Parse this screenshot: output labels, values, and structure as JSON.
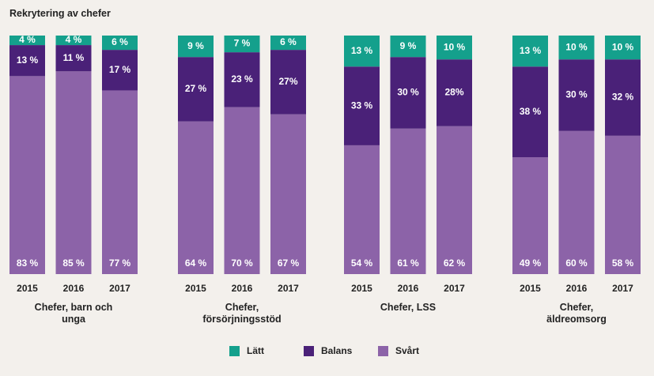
{
  "title": "Rekrytering av chefer",
  "chart_data": [
    {
      "type": "bar",
      "stacked": true,
      "xlabel": "Chefer, barn och unga",
      "categories": [
        "2015",
        "2016",
        "2017"
      ],
      "ylim": [
        0,
        100
      ],
      "series": [
        {
          "name": "Lätt",
          "color": "#14a08c",
          "values": [
            4,
            4,
            6
          ],
          "value_labels": [
            "4 %",
            "4 %",
            "6 %"
          ]
        },
        {
          "name": "Balans",
          "color": "#4a2178",
          "values": [
            13,
            11,
            17
          ],
          "value_labels": [
            "13 %",
            "11 %",
            "17 %"
          ]
        },
        {
          "name": "Svårt",
          "color": "#8c63a8",
          "values": [
            83,
            85,
            77
          ],
          "value_labels": [
            "83 %",
            "85 %",
            "77 %"
          ]
        }
      ]
    },
    {
      "type": "bar",
      "stacked": true,
      "xlabel": "Chefer, försörjningsstöd",
      "categories": [
        "2015",
        "2016",
        "2017"
      ],
      "ylim": [
        0,
        100
      ],
      "series": [
        {
          "name": "Lätt",
          "color": "#14a08c",
          "values": [
            9,
            7,
            6
          ],
          "value_labels": [
            "9 %",
            "7 %",
            "6 %"
          ]
        },
        {
          "name": "Balans",
          "color": "#4a2178",
          "values": [
            27,
            23,
            27
          ],
          "value_labels": [
            "27 %",
            "23 %",
            "27%"
          ]
        },
        {
          "name": "Svårt",
          "color": "#8c63a8",
          "values": [
            64,
            70,
            67
          ],
          "value_labels": [
            "64 %",
            "70 %",
            "67 %"
          ]
        }
      ]
    },
    {
      "type": "bar",
      "stacked": true,
      "xlabel": "Chefer, LSS",
      "categories": [
        "2015",
        "2016",
        "2017"
      ],
      "ylim": [
        0,
        100
      ],
      "series": [
        {
          "name": "Lätt",
          "color": "#14a08c",
          "values": [
            13,
            9,
            10
          ],
          "value_labels": [
            "13 %",
            "9 %",
            "10 %"
          ]
        },
        {
          "name": "Balans",
          "color": "#4a2178",
          "values": [
            33,
            30,
            28
          ],
          "value_labels": [
            "33 %",
            "30 %",
            "28%"
          ]
        },
        {
          "name": "Svårt",
          "color": "#8c63a8",
          "values": [
            54,
            61,
            62
          ],
          "value_labels": [
            "54 %",
            "61 %",
            "62 %"
          ]
        }
      ]
    },
    {
      "type": "bar",
      "stacked": true,
      "xlabel": "Chefer, äldreomsorg",
      "categories": [
        "2015",
        "2016",
        "2017"
      ],
      "ylim": [
        0,
        100
      ],
      "series": [
        {
          "name": "Lätt",
          "color": "#14a08c",
          "values": [
            13,
            10,
            10
          ],
          "value_labels": [
            "13 %",
            "10 %",
            "10 %"
          ]
        },
        {
          "name": "Balans",
          "color": "#4a2178",
          "values": [
            38,
            30,
            32
          ],
          "value_labels": [
            "38 %",
            "30 %",
            "32 %"
          ]
        },
        {
          "name": "Svårt",
          "color": "#8c63a8",
          "values": [
            49,
            60,
            58
          ],
          "value_labels": [
            "49 %",
            "60 %",
            "58 %"
          ]
        }
      ]
    }
  ]
}
